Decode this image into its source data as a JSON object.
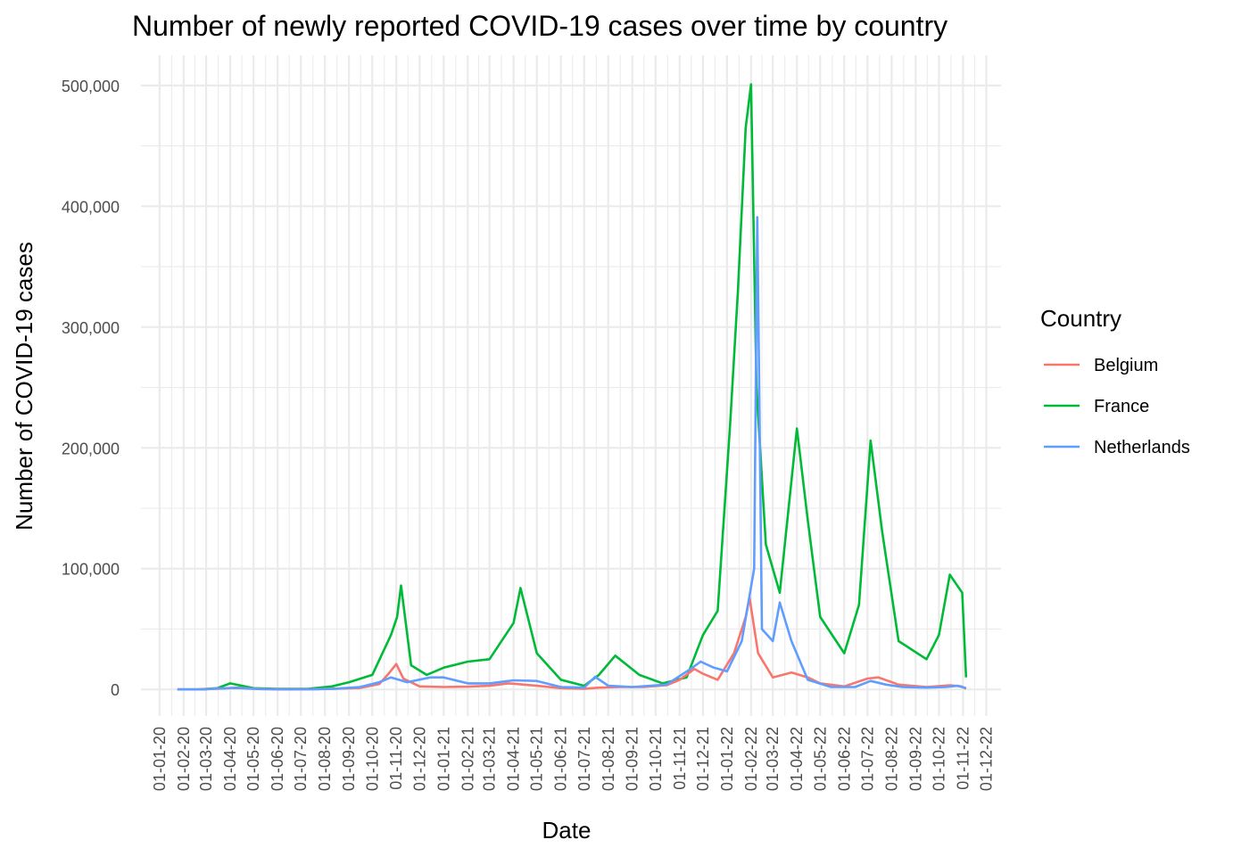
{
  "chart_data": {
    "type": "line",
    "title": "Number of newly reported COVID-19 cases over time by country",
    "xlabel": "Date",
    "ylabel": "Number of COVID-19 cases",
    "legend_title": "Country",
    "legend_position": "right",
    "grid": true,
    "ylim": [
      -22000,
      525000
    ],
    "y_ticks": [
      0,
      100000,
      200000,
      300000,
      400000,
      500000
    ],
    "y_tick_labels": [
      "0",
      "100,000",
      "200,000",
      "300,000",
      "400,000",
      "500,000"
    ],
    "x_tick_labels": [
      "01-01-20",
      "01-02-20",
      "01-03-20",
      "01-04-20",
      "01-05-20",
      "01-06-20",
      "01-07-20",
      "01-08-20",
      "01-09-20",
      "01-10-20",
      "01-11-20",
      "01-12-20",
      "01-01-21",
      "01-02-21",
      "01-03-21",
      "01-04-21",
      "01-05-21",
      "01-06-21",
      "01-07-21",
      "01-08-21",
      "01-09-21",
      "01-10-21",
      "01-11-21",
      "01-12-21",
      "01-01-22",
      "01-02-22",
      "01-03-22",
      "01-04-22",
      "01-05-22",
      "01-06-22",
      "01-07-22",
      "01-08-22",
      "01-09-22",
      "01-10-22",
      "01-11-22",
      "01-12-22"
    ],
    "x_note": "dates shown as DD-MM-YY; series points are monthly-resolution approximations of the daily line",
    "series": [
      {
        "name": "Belgium",
        "color": "#F8766D",
        "points": [
          [
            "2020-01-24",
            0
          ],
          [
            "2020-02-15",
            0
          ],
          [
            "2020-03-15",
            600
          ],
          [
            "2020-04-10",
            1500
          ],
          [
            "2020-05-01",
            600
          ],
          [
            "2020-06-01",
            100
          ],
          [
            "2020-07-15",
            150
          ],
          [
            "2020-08-10",
            600
          ],
          [
            "2020-09-15",
            1200
          ],
          [
            "2020-10-10",
            4500
          ],
          [
            "2020-10-22",
            13000
          ],
          [
            "2020-11-01",
            21000
          ],
          [
            "2020-11-10",
            9000
          ],
          [
            "2020-12-01",
            2500
          ],
          [
            "2021-01-01",
            2000
          ],
          [
            "2021-02-01",
            2300
          ],
          [
            "2021-03-01",
            3000
          ],
          [
            "2021-03-25",
            5000
          ],
          [
            "2021-04-05",
            4500
          ],
          [
            "2021-05-01",
            3000
          ],
          [
            "2021-06-01",
            1000
          ],
          [
            "2021-07-01",
            600
          ],
          [
            "2021-07-20",
            1500
          ],
          [
            "2021-08-15",
            2000
          ],
          [
            "2021-09-15",
            2000
          ],
          [
            "2021-10-15",
            3500
          ],
          [
            "2021-11-01",
            8000
          ],
          [
            "2021-11-20",
            17000
          ],
          [
            "2021-12-01",
            13000
          ],
          [
            "2021-12-20",
            8000
          ],
          [
            "2022-01-10",
            30000
          ],
          [
            "2022-01-25",
            60000
          ],
          [
            "2022-01-30",
            76000
          ],
          [
            "2022-02-10",
            30000
          ],
          [
            "2022-03-01",
            10000
          ],
          [
            "2022-03-25",
            14000
          ],
          [
            "2022-04-15",
            10000
          ],
          [
            "2022-05-01",
            5000
          ],
          [
            "2022-06-01",
            2500
          ],
          [
            "2022-07-01",
            9000
          ],
          [
            "2022-07-15",
            10000
          ],
          [
            "2022-08-10",
            4000
          ],
          [
            "2022-09-15",
            2000
          ],
          [
            "2022-10-15",
            3500
          ],
          [
            "2022-10-30",
            2500
          ],
          [
            "2022-11-05",
            500
          ]
        ]
      },
      {
        "name": "France",
        "color": "#00BA38",
        "points": [
          [
            "2020-01-24",
            0
          ],
          [
            "2020-02-20",
            0
          ],
          [
            "2020-03-15",
            1000
          ],
          [
            "2020-04-01",
            5000
          ],
          [
            "2020-05-01",
            1000
          ],
          [
            "2020-06-01",
            500
          ],
          [
            "2020-07-10",
            500
          ],
          [
            "2020-08-10",
            2500
          ],
          [
            "2020-09-01",
            6000
          ],
          [
            "2020-10-01",
            12000
          ],
          [
            "2020-10-25",
            45000
          ],
          [
            "2020-11-02",
            60000
          ],
          [
            "2020-11-07",
            86000
          ],
          [
            "2020-11-20",
            20000
          ],
          [
            "2020-12-10",
            12000
          ],
          [
            "2021-01-01",
            18000
          ],
          [
            "2021-02-01",
            23000
          ],
          [
            "2021-03-01",
            25000
          ],
          [
            "2021-04-01",
            55000
          ],
          [
            "2021-04-10",
            84000
          ],
          [
            "2021-05-01",
            30000
          ],
          [
            "2021-06-01",
            8000
          ],
          [
            "2021-07-01",
            3000
          ],
          [
            "2021-07-20",
            12000
          ],
          [
            "2021-08-10",
            28000
          ],
          [
            "2021-09-10",
            12000
          ],
          [
            "2021-10-10",
            5000
          ],
          [
            "2021-11-10",
            10000
          ],
          [
            "2021-12-01",
            45000
          ],
          [
            "2021-12-20",
            65000
          ],
          [
            "2022-01-05",
            220000
          ],
          [
            "2022-01-15",
            330000
          ],
          [
            "2022-01-25",
            465000
          ],
          [
            "2022-02-01",
            501000
          ],
          [
            "2022-02-08",
            250000
          ],
          [
            "2022-02-20",
            120000
          ],
          [
            "2022-03-10",
            80000
          ],
          [
            "2022-04-01",
            216000
          ],
          [
            "2022-04-15",
            140000
          ],
          [
            "2022-05-01",
            60000
          ],
          [
            "2022-06-01",
            30000
          ],
          [
            "2022-06-20",
            70000
          ],
          [
            "2022-07-05",
            206000
          ],
          [
            "2022-07-20",
            130000
          ],
          [
            "2022-08-10",
            40000
          ],
          [
            "2022-09-15",
            25000
          ],
          [
            "2022-10-01",
            45000
          ],
          [
            "2022-10-15",
            95000
          ],
          [
            "2022-10-31",
            80000
          ],
          [
            "2022-11-05",
            10000
          ]
        ]
      },
      {
        "name": "Netherlands",
        "color": "#619CFF",
        "points": [
          [
            "2020-01-24",
            0
          ],
          [
            "2020-02-27",
            0
          ],
          [
            "2020-03-15",
            800
          ],
          [
            "2020-04-10",
            1200
          ],
          [
            "2020-05-10",
            300
          ],
          [
            "2020-06-10",
            100
          ],
          [
            "2020-07-20",
            200
          ],
          [
            "2020-08-15",
            600
          ],
          [
            "2020-09-15",
            2000
          ],
          [
            "2020-10-10",
            6000
          ],
          [
            "2020-10-25",
            10000
          ],
          [
            "2020-11-15",
            6000
          ],
          [
            "2020-12-15",
            10000
          ],
          [
            "2021-01-01",
            10000
          ],
          [
            "2021-02-01",
            5000
          ],
          [
            "2021-03-01",
            5000
          ],
          [
            "2021-04-01",
            7500
          ],
          [
            "2021-05-01",
            7000
          ],
          [
            "2021-06-01",
            2000
          ],
          [
            "2021-07-01",
            1500
          ],
          [
            "2021-07-15",
            10500
          ],
          [
            "2021-08-01",
            3000
          ],
          [
            "2021-09-01",
            2000
          ],
          [
            "2021-10-15",
            4000
          ],
          [
            "2021-11-15",
            17000
          ],
          [
            "2021-11-28",
            23000
          ],
          [
            "2021-12-15",
            18000
          ],
          [
            "2022-01-01",
            15000
          ],
          [
            "2022-01-20",
            40000
          ],
          [
            "2022-02-05",
            100000
          ],
          [
            "2022-02-09",
            391000
          ],
          [
            "2022-02-15",
            50000
          ],
          [
            "2022-03-01",
            40000
          ],
          [
            "2022-03-10",
            72000
          ],
          [
            "2022-03-25",
            40000
          ],
          [
            "2022-04-15",
            8000
          ],
          [
            "2022-05-15",
            2000
          ],
          [
            "2022-06-15",
            2000
          ],
          [
            "2022-07-05",
            7000
          ],
          [
            "2022-07-25",
            4000
          ],
          [
            "2022-08-15",
            2000
          ],
          [
            "2022-09-15",
            1500
          ],
          [
            "2022-10-10",
            2000
          ],
          [
            "2022-10-25",
            3000
          ],
          [
            "2022-11-05",
            1000
          ]
        ]
      }
    ]
  }
}
